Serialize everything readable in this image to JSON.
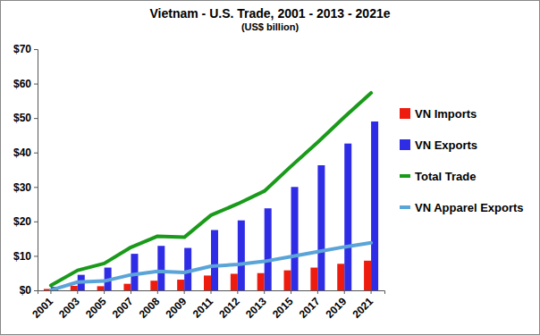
{
  "chart_data": {
    "type": "bar",
    "title": "Vietnam - U.S. Trade, 2001 - 2013 - 2021e",
    "subtitle": "(US$ billion)",
    "categories": [
      "2001",
      "2003",
      "2005",
      "2007",
      "2008",
      "2009",
      "2011",
      "2012",
      "2013",
      "2015",
      "2017",
      "2019",
      "2021"
    ],
    "series": [
      {
        "name": "VN Imports",
        "type": "bar",
        "color": "#ee1c0e",
        "values": [
          0.4,
          1.3,
          1.2,
          1.9,
          2.8,
          3.1,
          4.3,
          4.8,
          5.0,
          5.8,
          6.6,
          7.7,
          8.6
        ]
      },
      {
        "name": "VN Exports",
        "type": "bar",
        "color": "#2f2ce6",
        "values": [
          1.0,
          4.5,
          6.6,
          10.6,
          12.9,
          12.3,
          17.5,
          20.3,
          23.8,
          30.0,
          36.3,
          42.6,
          49.0
        ]
      },
      {
        "name": "Total Trade",
        "type": "line",
        "color": "#1a9a1a",
        "values": [
          1.4,
          5.8,
          7.8,
          12.5,
          15.7,
          15.4,
          21.8,
          25.1,
          28.8,
          36.0,
          43.0,
          50.3,
          57.3
        ]
      },
      {
        "name": "VN Apparel Exports",
        "type": "line",
        "color": "#5aa4d8",
        "values": [
          0.05,
          2.4,
          2.7,
          4.5,
          5.5,
          5.2,
          7.0,
          7.5,
          8.4,
          9.8,
          11.2,
          12.6,
          13.8
        ]
      }
    ],
    "ylim": [
      0,
      70
    ],
    "yticks": [
      {
        "value": 0,
        "label": "$0"
      },
      {
        "value": 10,
        "label": "$10"
      },
      {
        "value": 20,
        "label": "$20"
      },
      {
        "value": 30,
        "label": "$30"
      },
      {
        "value": 40,
        "label": "$40"
      },
      {
        "value": 50,
        "label": "$50"
      },
      {
        "value": 60,
        "label": "$60"
      },
      {
        "value": 70,
        "label": "$70"
      }
    ],
    "grid": false,
    "legend": "right"
  }
}
